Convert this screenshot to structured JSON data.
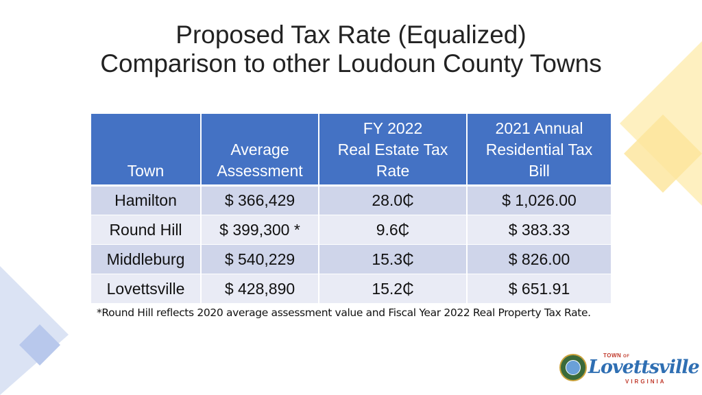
{
  "slide": {
    "title_line1": "Proposed Tax Rate (Equalized)",
    "title_line2": "Comparison to other Loudoun County Towns"
  },
  "table": {
    "headers": [
      {
        "lines": [
          "Town"
        ]
      },
      {
        "lines": [
          "Average",
          "Assessment"
        ]
      },
      {
        "lines": [
          "FY 2022",
          "Real Estate Tax",
          "Rate"
        ]
      },
      {
        "lines": [
          "2021 Annual",
          "Residential Tax",
          "Bill"
        ]
      }
    ],
    "rows": [
      {
        "town": "Hamilton",
        "assessment": "$ 366,429",
        "rate": "28.0₵",
        "bill": "$ 1,026.00"
      },
      {
        "town": "Round Hill",
        "assessment": "$ 399,300 *",
        "rate": "9.6₵",
        "bill": "$ 383.33"
      },
      {
        "town": "Middleburg",
        "assessment": "$ 540,229",
        "rate": "15.3₵",
        "bill": "$ 826.00"
      },
      {
        "town": "Lovettsville",
        "assessment": "$ 428,890",
        "rate": "15.2₵",
        "bill": "$ 651.91"
      }
    ]
  },
  "footnote": "*Round Hill reflects 2020 average assessment value and Fiscal Year 2022 Real Property Tax Rate.",
  "logo": {
    "town": "TOWN",
    "of": "OF",
    "name": "Lovettsville",
    "state": "VIRGINIA"
  },
  "colors": {
    "header_bg": "#4472c4",
    "row_odd": "#cfd5ea",
    "row_even": "#e9ebf5",
    "deco_yellow": "#fde9a6",
    "deco_blue": "#c5d3ef"
  }
}
